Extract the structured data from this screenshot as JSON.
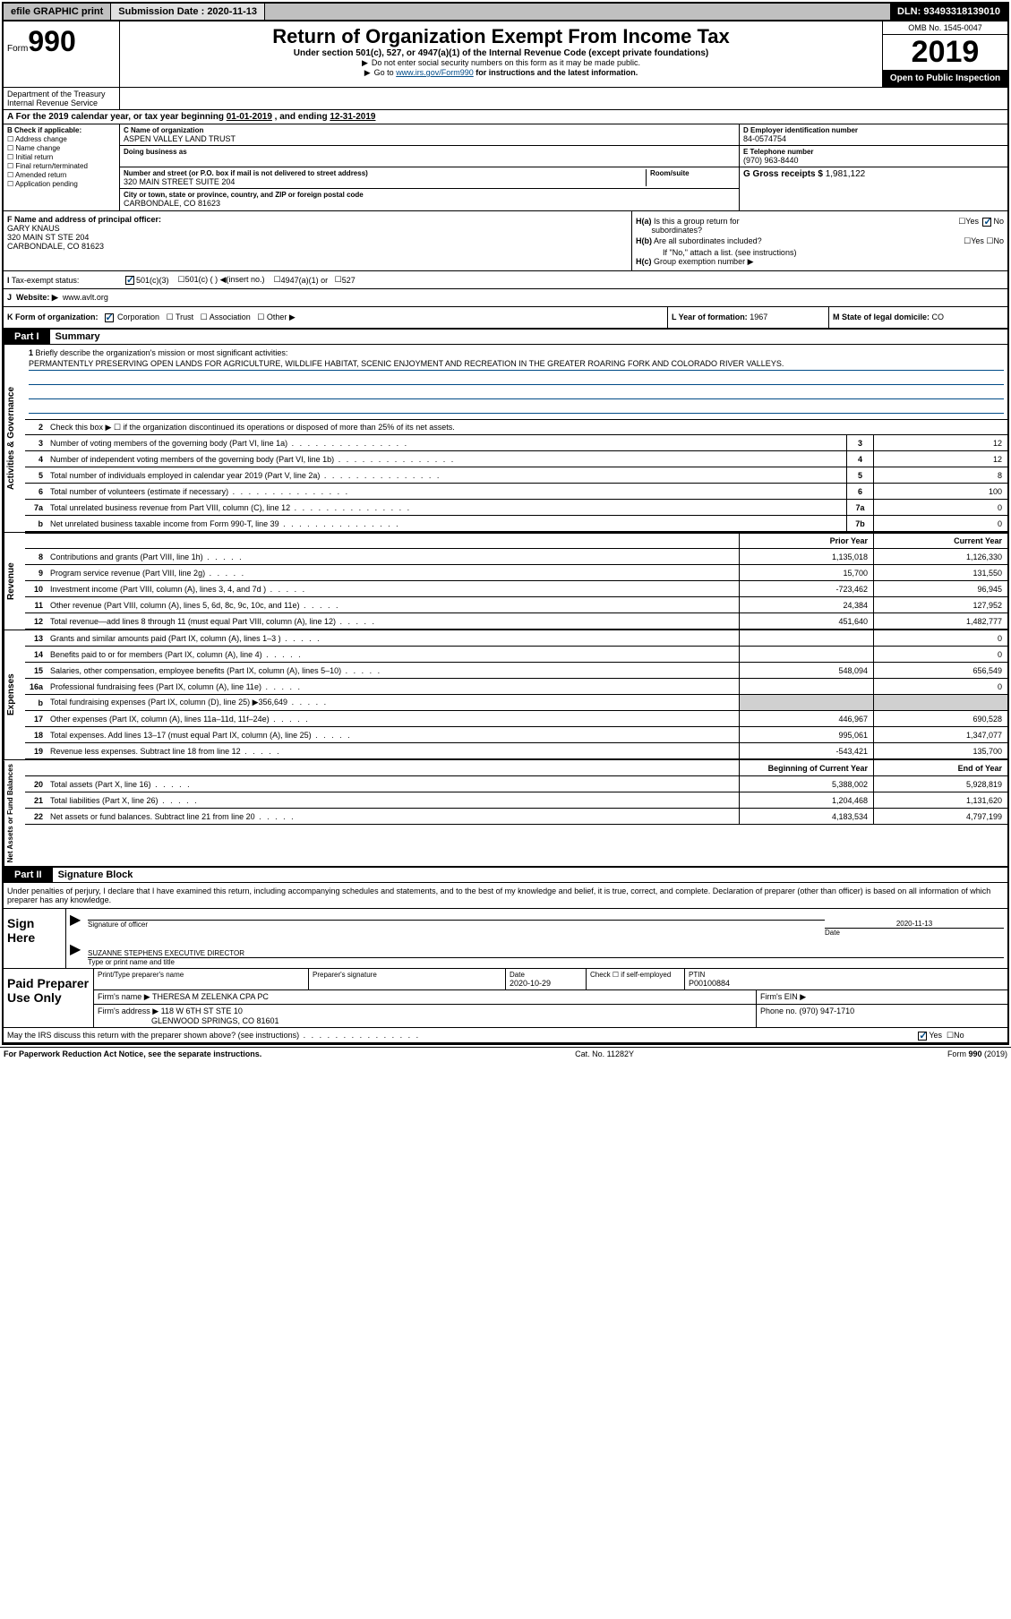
{
  "topbar": {
    "efile": "efile GRAPHIC print",
    "submission_label": "Submission Date : 2020-11-13",
    "dln": "DLN: 93493318139010"
  },
  "header": {
    "form_label": "Form",
    "form_number": "990",
    "title": "Return of Organization Exempt From Income Tax",
    "subtitle": "Under section 501(c), 527, or 4947(a)(1) of the Internal Revenue Code (except private foundations)",
    "instr1": "Do not enter social security numbers on this form as it may be made public.",
    "instr2_pre": "Go to ",
    "instr2_link": "www.irs.gov/Form990",
    "instr2_post": " for instructions and the latest information.",
    "dept": "Department of the Treasury\nInternal Revenue Service",
    "omb": "OMB No. 1545-0047",
    "year": "2019",
    "inspection": "Open to Public Inspection"
  },
  "section_a": {
    "text_pre": "For the 2019 calendar year, or tax year beginning ",
    "begin": "01-01-2019",
    "text_mid": " , and ending ",
    "end": "12-31-2019"
  },
  "section_b": {
    "label": "B Check if applicable:",
    "opts": [
      "Address change",
      "Name change",
      "Initial return",
      "Final return/terminated",
      "Amended return",
      "Application pending"
    ]
  },
  "section_c": {
    "name_label": "C Name of organization",
    "name": "ASPEN VALLEY LAND TRUST",
    "dba_label": "Doing business as",
    "addr_label": "Number and street (or P.O. box if mail is not delivered to street address)",
    "room_label": "Room/suite",
    "addr": "320 MAIN STREET SUITE 204",
    "city_label": "City or town, state or province, country, and ZIP or foreign postal code",
    "city": "CARBONDALE, CO  81623"
  },
  "section_d": {
    "label": "D Employer identification number",
    "ein": "84-0574754",
    "phone_label": "E Telephone number",
    "phone": "(970) 963-8440",
    "gross_label": "G Gross receipts $ ",
    "gross": "1,981,122"
  },
  "section_f": {
    "label": "F  Name and address of principal officer:",
    "name": "GARY KNAUS",
    "addr1": "320 MAIN ST STE 204",
    "addr2": "CARBONDALE, CO  81623"
  },
  "section_h": {
    "ha_label": "Is this a group return for",
    "ha_label2": "subordinates?",
    "hb_label": "Are all subordinates included?",
    "hb_note": "If \"No,\" attach a list. (see instructions)",
    "hc_label": "Group exemption number ▶"
  },
  "tax_status": {
    "label": "Tax-exempt status:",
    "opt1": "501(c)(3)",
    "opt2": "501(c) (  ) ◀(insert no.)",
    "opt3": "4947(a)(1) or",
    "opt4": "527"
  },
  "section_j": {
    "label": "Website: ▶",
    "value": "www.avlt.org"
  },
  "section_k": {
    "label": "K Form of organization:",
    "opts": [
      "Corporation",
      "Trust",
      "Association",
      "Other ▶"
    ]
  },
  "section_l": {
    "label": "L Year of formation: ",
    "value": "1967"
  },
  "section_m": {
    "label": "M State of legal domicile: ",
    "value": "CO"
  },
  "part1": {
    "header": "Part I",
    "title": "Summary",
    "line1_label": "Briefly describe the organization's mission or most significant activities:",
    "mission": "PERMANTENTLY PRESERVING OPEN LANDS FOR AGRICULTURE, WILDLIFE HABITAT, SCENIC ENJOYMENT AND RECREATION IN THE GREATER ROARING FORK AND COLORADO RIVER VALLEYS.",
    "line2": "Check this box ▶ ☐  if the organization discontinued its operations or disposed of more than 25% of its net assets.",
    "governance_label": "Activities & Governance",
    "revenue_label": "Revenue",
    "expenses_label": "Expenses",
    "netassets_label": "Net Assets or Fund Balances",
    "prior_year_header": "Prior Year",
    "current_year_header": "Current Year",
    "begin_year_header": "Beginning of Current Year",
    "end_year_header": "End of Year",
    "lines_gov": [
      {
        "n": "3",
        "t": "Number of voting members of the governing body (Part VI, line 1a)",
        "box": "3",
        "v": "12"
      },
      {
        "n": "4",
        "t": "Number of independent voting members of the governing body (Part VI, line 1b)",
        "box": "4",
        "v": "12"
      },
      {
        "n": "5",
        "t": "Total number of individuals employed in calendar year 2019 (Part V, line 2a)",
        "box": "5",
        "v": "8"
      },
      {
        "n": "6",
        "t": "Total number of volunteers (estimate if necessary)",
        "box": "6",
        "v": "100"
      },
      {
        "n": "7a",
        "t": "Total unrelated business revenue from Part VIII, column (C), line 12",
        "box": "7a",
        "v": "0"
      },
      {
        "n": "b",
        "t": "Net unrelated business taxable income from Form 990-T, line 39",
        "box": "7b",
        "v": "0"
      }
    ],
    "lines_rev": [
      {
        "n": "8",
        "t": "Contributions and grants (Part VIII, line 1h)",
        "py": "1,135,018",
        "cy": "1,126,330"
      },
      {
        "n": "9",
        "t": "Program service revenue (Part VIII, line 2g)",
        "py": "15,700",
        "cy": "131,550"
      },
      {
        "n": "10",
        "t": "Investment income (Part VIII, column (A), lines 3, 4, and 7d )",
        "py": "-723,462",
        "cy": "96,945"
      },
      {
        "n": "11",
        "t": "Other revenue (Part VIII, column (A), lines 5, 6d, 8c, 9c, 10c, and 11e)",
        "py": "24,384",
        "cy": "127,952"
      },
      {
        "n": "12",
        "t": "Total revenue—add lines 8 through 11 (must equal Part VIII, column (A), line 12)",
        "py": "451,640",
        "cy": "1,482,777"
      }
    ],
    "lines_exp": [
      {
        "n": "13",
        "t": "Grants and similar amounts paid (Part IX, column (A), lines 1–3 )",
        "py": "",
        "cy": "0"
      },
      {
        "n": "14",
        "t": "Benefits paid to or for members (Part IX, column (A), line 4)",
        "py": "",
        "cy": "0"
      },
      {
        "n": "15",
        "t": "Salaries, other compensation, employee benefits (Part IX, column (A), lines 5–10)",
        "py": "548,094",
        "cy": "656,549"
      },
      {
        "n": "16a",
        "t": "Professional fundraising fees (Part IX, column (A), line 11e)",
        "py": "",
        "cy": "0"
      },
      {
        "n": "b",
        "t": "Total fundraising expenses (Part IX, column (D), line 25) ▶356,649",
        "py": "shaded",
        "cy": "shaded"
      },
      {
        "n": "17",
        "t": "Other expenses (Part IX, column (A), lines 11a–11d, 11f–24e)",
        "py": "446,967",
        "cy": "690,528"
      },
      {
        "n": "18",
        "t": "Total expenses. Add lines 13–17 (must equal Part IX, column (A), line 25)",
        "py": "995,061",
        "cy": "1,347,077"
      },
      {
        "n": "19",
        "t": "Revenue less expenses. Subtract line 18 from line 12",
        "py": "-543,421",
        "cy": "135,700"
      }
    ],
    "lines_net": [
      {
        "n": "20",
        "t": "Total assets (Part X, line 16)",
        "py": "5,388,002",
        "cy": "5,928,819"
      },
      {
        "n": "21",
        "t": "Total liabilities (Part X, line 26)",
        "py": "1,204,468",
        "cy": "1,131,620"
      },
      {
        "n": "22",
        "t": "Net assets or fund balances. Subtract line 21 from line 20",
        "py": "4,183,534",
        "cy": "4,797,199"
      }
    ]
  },
  "part2": {
    "header": "Part II",
    "title": "Signature Block",
    "intro": "Under penalties of perjury, I declare that I have examined this return, including accompanying schedules and statements, and to the best of my knowledge and belief, it is true, correct, and complete. Declaration of preparer (other than officer) is based on all information of which preparer has any knowledge.",
    "sign_here": "Sign Here",
    "sig_officer": "Signature of officer",
    "sig_date": "2020-11-13",
    "date_label": "Date",
    "officer_name": "SUZANNE STEPHENS EXECUTIVE DIRECTOR",
    "type_label": "Type or print name and title",
    "paid_prep": "Paid Preparer Use Only",
    "prep_name_label": "Print/Type preparer's name",
    "prep_sig_label": "Preparer's signature",
    "prep_date_label": "Date",
    "prep_date": "2020-10-29",
    "check_self": "Check ☐ if self-employed",
    "ptin_label": "PTIN",
    "ptin": "P00100884",
    "firm_name_label": "Firm's name    ▶",
    "firm_name": "THERESA M ZELENKA CPA PC",
    "firm_ein_label": "Firm's EIN ▶",
    "firm_addr_label": "Firm's address ▶",
    "firm_addr1": "118 W 6TH ST STE 10",
    "firm_addr2": "GLENWOOD SPRINGS, CO  81601",
    "firm_phone_label": "Phone no. ",
    "firm_phone": "(970) 947-1710",
    "discuss": "May the IRS discuss this return with the preparer shown above? (see instructions)"
  },
  "footer": {
    "paperwork": "For Paperwork Reduction Act Notice, see the separate instructions.",
    "cat": "Cat. No. 11282Y",
    "form": "Form 990 (2019)"
  }
}
